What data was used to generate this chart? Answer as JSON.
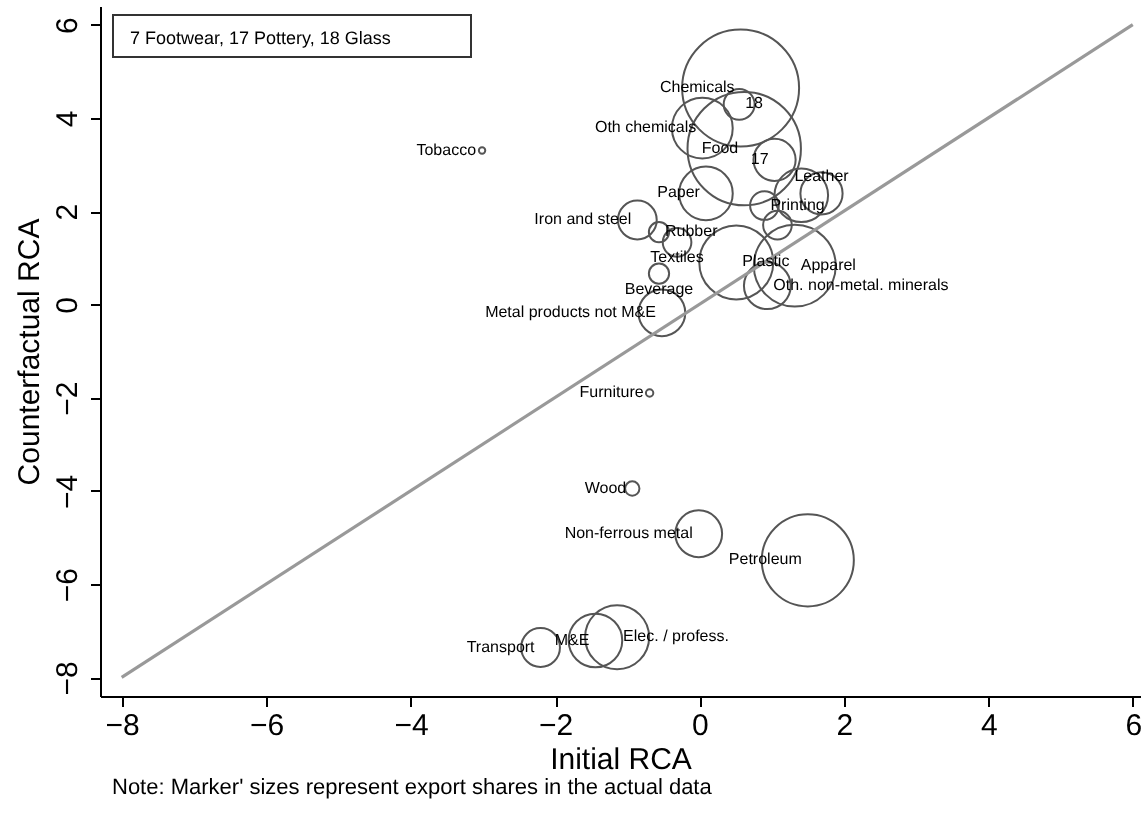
{
  "chart_data": {
    "type": "bubble",
    "xlabel": "Initial RCA",
    "ylabel": "Counterfactual RCA",
    "xlim": [
      -8.3,
      6.1
    ],
    "ylim": [
      -8.4,
      6.4
    ],
    "xticks": [
      -8,
      -6,
      -4,
      -2,
      0,
      2,
      4,
      6
    ],
    "yticks": [
      -8,
      -6,
      -4,
      -2,
      0,
      2,
      4,
      6
    ],
    "series": [
      {
        "marker": "circle",
        "color": "#555555",
        "x": [
          0.57,
          0.62,
          0.04,
          0.55,
          1.04,
          0.09,
          0.9,
          1.69,
          1.41,
          1.08,
          -0.86,
          -0.56,
          -0.31,
          -0.56,
          -0.52,
          0.51,
          1.32,
          0.94,
          -3.01,
          -0.69,
          -0.93,
          -0.01,
          1.5,
          -2.2,
          -1.44,
          -1.14
        ],
        "values": [
          4.64,
          3.34,
          3.78,
          4.29,
          3.1,
          2.38,
          2.12,
          2.38,
          2.34,
          1.7,
          1.81,
          1.55,
          1.33,
          0.66,
          -0.18,
          0.9,
          0.83,
          0.4,
          3.3,
          -1.9,
          -3.95,
          -4.92,
          -5.49,
          -7.36,
          -7.21,
          -7.14
        ],
        "sizes": [
          1,
          0.94,
          0.27,
          0.07,
          0.13,
          0.21,
          0.06,
          0.13,
          0.21,
          0.06,
          0.11,
          0.03,
          0.06,
          0.03,
          0.16,
          0.4,
          0.49,
          0.16,
          0.003,
          0.004,
          0.015,
          0.16,
          0.62,
          0.11,
          0.21,
          0.3
        ]
      },
      {
        "type": "line",
        "color": "#999999",
        "x": [
          -8,
          6
        ],
        "values": [
          -8,
          6
        ]
      }
    ],
    "annotations": [
      "7 Footwear, 17 Pottery, 18 Glass",
      {
        "text": "Chemicals",
        "x": 0.57,
        "y": 4.64
      },
      {
        "text": "Food",
        "x": 0.62,
        "y": 3.34
      },
      {
        "text": "Oth chemicals",
        "x": 0.04,
        "y": 3.78
      },
      {
        "text": "18",
        "x": 0.55,
        "y": 4.29
      },
      {
        "text": "17",
        "x": 1.04,
        "y": 3.1
      },
      {
        "text": "Paper",
        "x": 0.09,
        "y": 2.38
      },
      {
        "text": "Printing",
        "x": 0.9,
        "y": 2.12
      },
      {
        "text": "Leather",
        "x": 1.69,
        "y": 2.38
      },
      {
        "text": "Iron and steel",
        "x": -0.86,
        "y": 1.81
      },
      {
        "text": "Rubber",
        "x": -0.56,
        "y": 1.55
      },
      {
        "text": "Textiles",
        "x": -0.31,
        "y": 1.33
      },
      {
        "text": "Beverage",
        "x": -0.56,
        "y": 0.66
      },
      {
        "text": "Metal products not M&E",
        "x": -0.52,
        "y": -0.18
      },
      {
        "text": "Plastic",
        "x": 0.51,
        "y": 0.9
      },
      {
        "text": "Apparel",
        "x": 1.32,
        "y": 0.83
      },
      {
        "text": "Oth. non-metal. minerals",
        "x": 0.94,
        "y": 0.4
      },
      {
        "text": "Tobacco",
        "x": -3.01,
        "y": 3.3
      },
      {
        "text": "Furniture",
        "x": -0.69,
        "y": -1.9
      },
      {
        "text": "Wood",
        "x": -0.93,
        "y": -3.95
      },
      {
        "text": "Non-ferrous metal",
        "x": -0.01,
        "y": -4.92
      },
      {
        "text": "Petroleum",
        "x": 1.5,
        "y": -5.49
      },
      {
        "text": "Transport",
        "x": -2.2,
        "y": -7.36
      },
      {
        "text": "M&E",
        "x": -1.44,
        "y": -7.21
      },
      {
        "text": "Elec. / profess.",
        "x": -1.14,
        "y": -7.14
      },
      "Note: Marker' sizes represent export shares in the actual data"
    ]
  }
}
